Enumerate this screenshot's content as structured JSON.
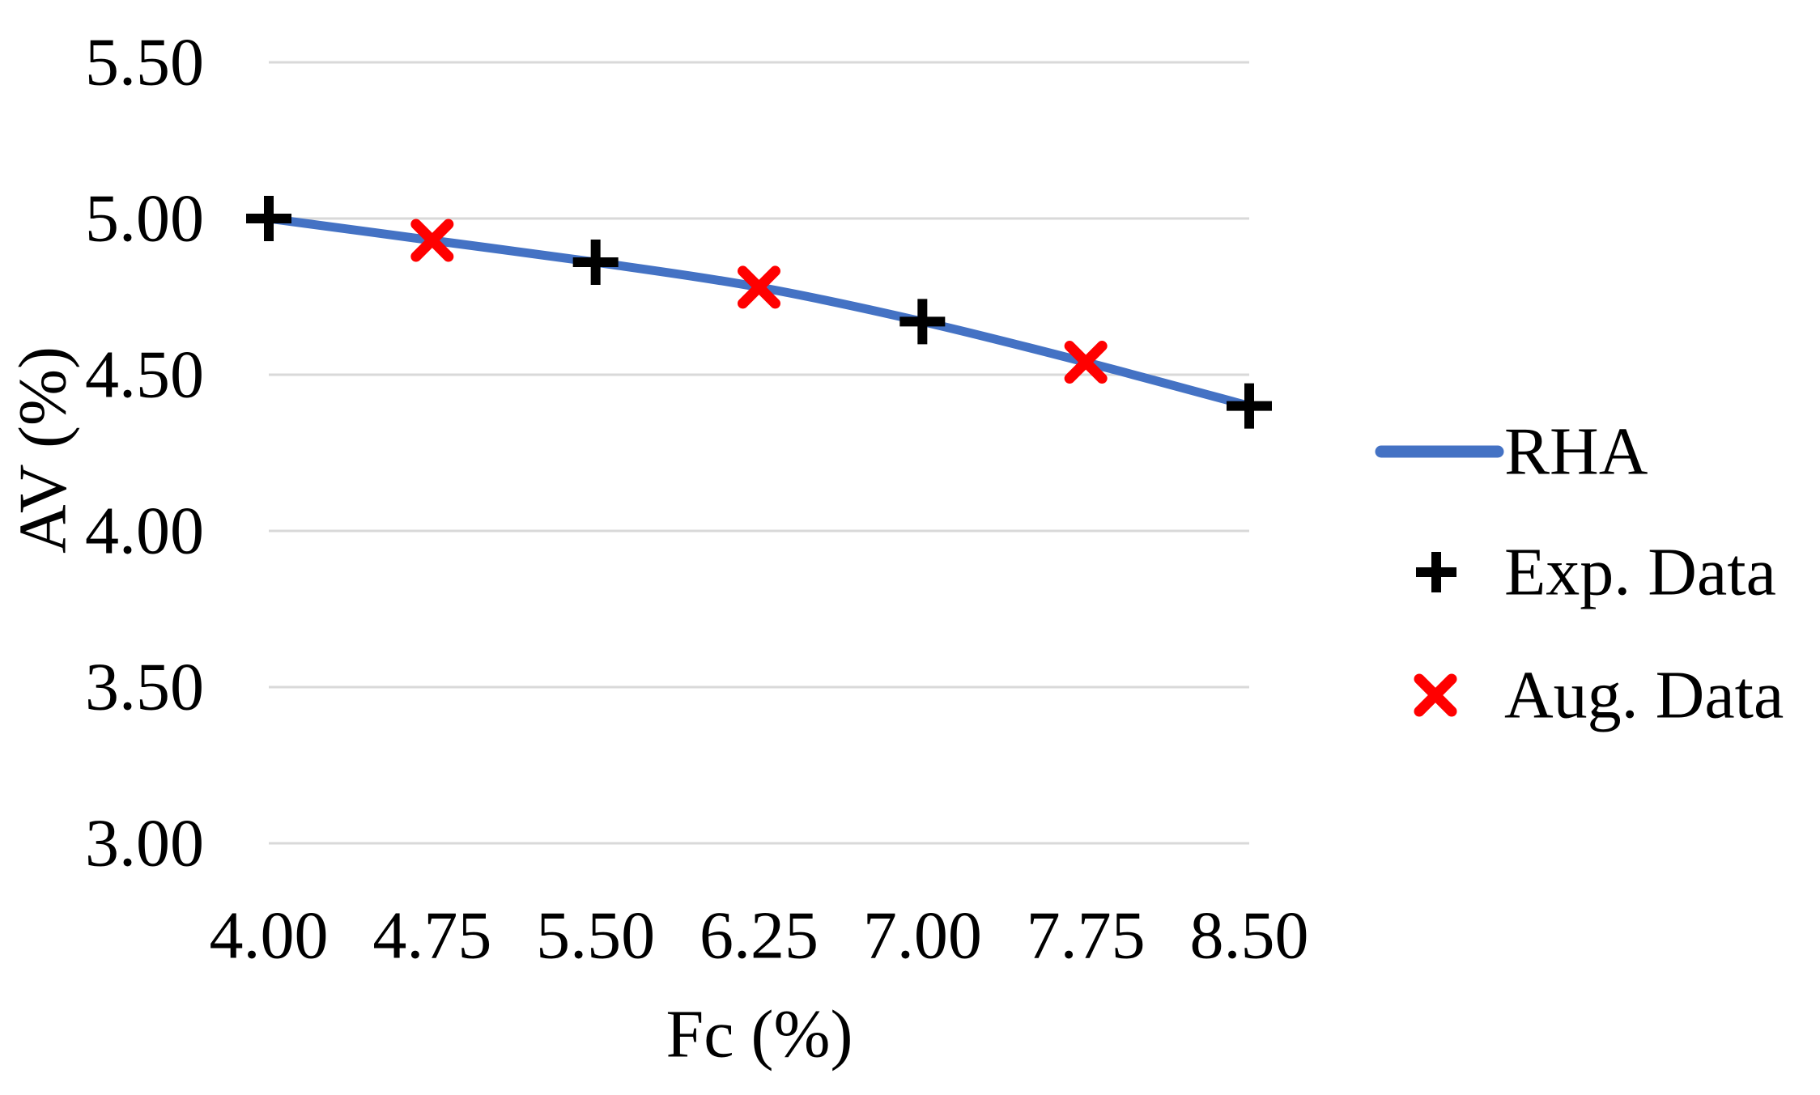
{
  "figure": {
    "background": "#FFFFFF"
  },
  "chart_data": {
    "type": "line",
    "title": "",
    "xlabel": "Fc (%)",
    "ylabel": "AV (%)",
    "xlim": [
      4.0,
      8.5
    ],
    "ylim": [
      3.0,
      5.5
    ],
    "x_ticks": [
      "4.00",
      "4.75",
      "5.50",
      "6.25",
      "7.00",
      "7.75",
      "8.50"
    ],
    "x_tick_values": [
      4.0,
      4.75,
      5.5,
      6.25,
      7.0,
      7.75,
      8.5
    ],
    "y_ticks": [
      "3.00",
      "3.50",
      "4.00",
      "4.50",
      "5.00",
      "5.50"
    ],
    "y_tick_values": [
      3.0,
      3.5,
      4.0,
      4.5,
      5.0,
      5.5
    ],
    "grid": "horizontal-only",
    "gridline_color": "#D9D9D9",
    "text_color": "#000000",
    "legend_position": "right",
    "series": [
      {
        "name": "RHA",
        "type": "line",
        "marker": "none",
        "color": "#4472C4",
        "x": [
          4.0,
          4.75,
          5.5,
          6.25,
          7.0,
          7.75,
          8.5
        ],
        "y": [
          5.0,
          4.93,
          4.86,
          4.78,
          4.67,
          4.54,
          4.4
        ]
      },
      {
        "name": "Exp. Data",
        "type": "scatter",
        "marker": "plus",
        "color": "#000000",
        "x": [
          4.0,
          5.5,
          7.0,
          8.5
        ],
        "y": [
          5.0,
          4.86,
          4.67,
          4.4
        ]
      },
      {
        "name": "Aug. Data",
        "type": "scatter",
        "marker": "x",
        "color": "#FF0000",
        "x": [
          4.75,
          6.25,
          7.75
        ],
        "y": [
          4.93,
          4.78,
          4.54
        ]
      }
    ]
  }
}
